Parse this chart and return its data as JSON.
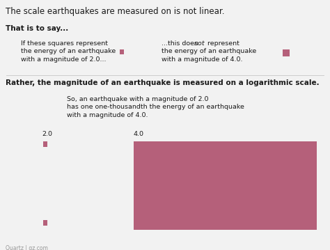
{
  "title": "The scale earthquakes are measured on is not linear.",
  "subtitle1": "That is to say...",
  "subtitle2": "Rather, the magnitude of an earthquake is measured on a logarithmic scale.",
  "annotation_line1": "So, an earthquake with a magnitude of 2.0",
  "annotation_line2": "has one one-thousandth the energy of an earthquake",
  "annotation_line3": "with a magnitude of 4.0.",
  "left_text_line1": "If these squares represent",
  "left_text_line2": "the energy of an earthquake",
  "left_text_line3": "with a magnitude of 2.0...",
  "right_text_line1": "...this does ",
  "right_text_italic": "not",
  "right_text_line1b": " represent",
  "right_text_line2": "the energy of an earthquake",
  "right_text_line3": "with a magnitude of 4.0.",
  "label_small": "2.0",
  "label_large": "4.0",
  "square_color": "#b5607a",
  "bg_color": "#f2f2f2",
  "text_color": "#1a1a1a",
  "watermark": "Quartz | qz.com",
  "title_fontsize": 8.5,
  "sub_fontsize": 7.5,
  "body_fontsize": 6.8,
  "label_fontsize": 6.8,
  "watermark_fontsize": 5.5
}
